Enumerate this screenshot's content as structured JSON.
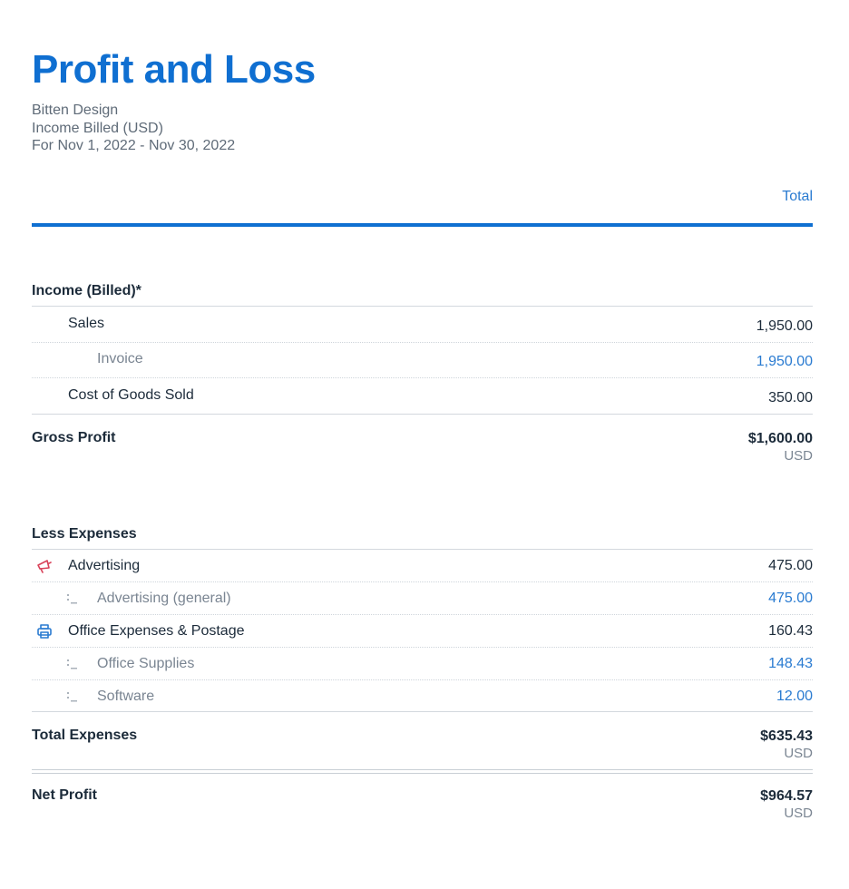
{
  "report": {
    "title": "Profit and Loss",
    "company": "Bitten Design",
    "basis": "Income Billed (USD)",
    "period": "For Nov 1, 2022 - Nov 30, 2022",
    "column_header": "Total"
  },
  "income": {
    "section_title": "Income (Billed)*",
    "sales": {
      "label": "Sales",
      "value": "1,950.00"
    },
    "invoice": {
      "label": "Invoice",
      "value": "1,950.00"
    },
    "cogs": {
      "label": "Cost of Goods Sold",
      "value": "350.00"
    }
  },
  "gross_profit": {
    "label": "Gross Profit",
    "value": "$1,600.00",
    "currency": "USD"
  },
  "expenses": {
    "section_title": "Less Expenses",
    "advertising": {
      "label": "Advertising",
      "value": "475.00",
      "icon": "megaphone-icon"
    },
    "advertising_general": {
      "label": "Advertising (general)",
      "value": "475.00",
      "icon": "subcategory-icon"
    },
    "office": {
      "label": "Office Expenses & Postage",
      "value": "160.43",
      "icon": "printer-icon"
    },
    "office_supplies": {
      "label": "Office Supplies",
      "value": "148.43",
      "icon": "subcategory-icon"
    },
    "software": {
      "label": "Software",
      "value": "12.00",
      "icon": "subcategory-icon"
    }
  },
  "total_expenses": {
    "label": "Total Expenses",
    "value": "$635.43",
    "currency": "USD"
  },
  "net_profit": {
    "label": "Net Profit",
    "value": "$964.57",
    "currency": "USD"
  },
  "colors": {
    "accent": "#0f6fd1",
    "link": "#2a7bd1",
    "advertising_icon": "#d9435a",
    "office_icon": "#2a7bd1"
  }
}
